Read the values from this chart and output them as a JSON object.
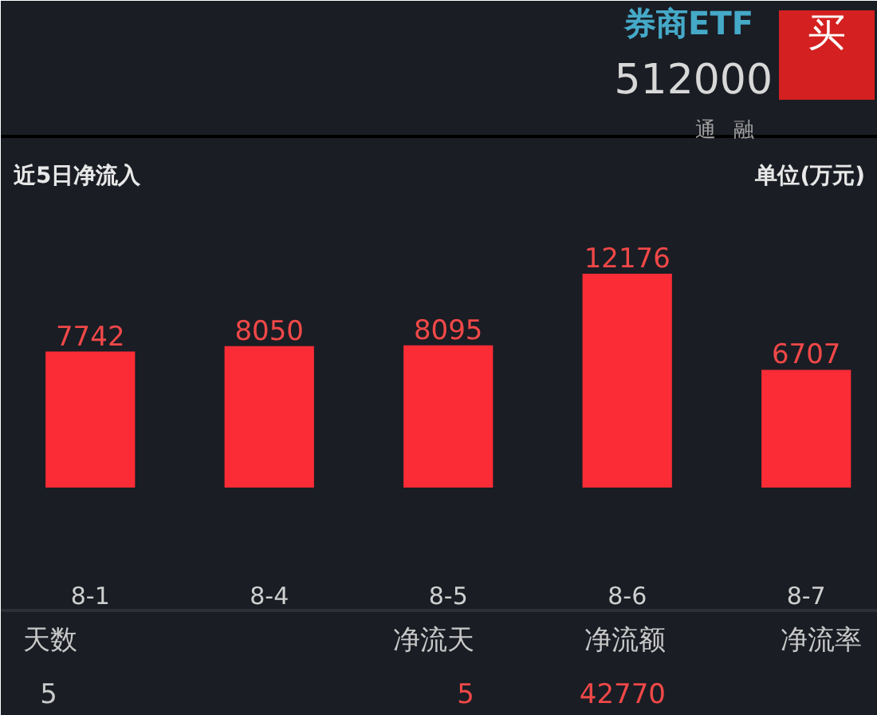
{
  "chart_data": {
    "type": "bar",
    "title": "近5日净流入",
    "ylabel": "单位(万元)",
    "categories": [
      "8-1",
      "8-4",
      "8-5",
      "8-6",
      "8-7"
    ],
    "values": [
      7742,
      8050,
      8095,
      12176,
      6707
    ],
    "color": "#fb2c36",
    "data_labels": true,
    "annotations": [
      "券商ETF",
      "512000",
      "买",
      "通",
      "融",
      "天数",
      "5",
      "净流天",
      "5",
      "净流额",
      "42770",
      "净流率"
    ]
  }
}
